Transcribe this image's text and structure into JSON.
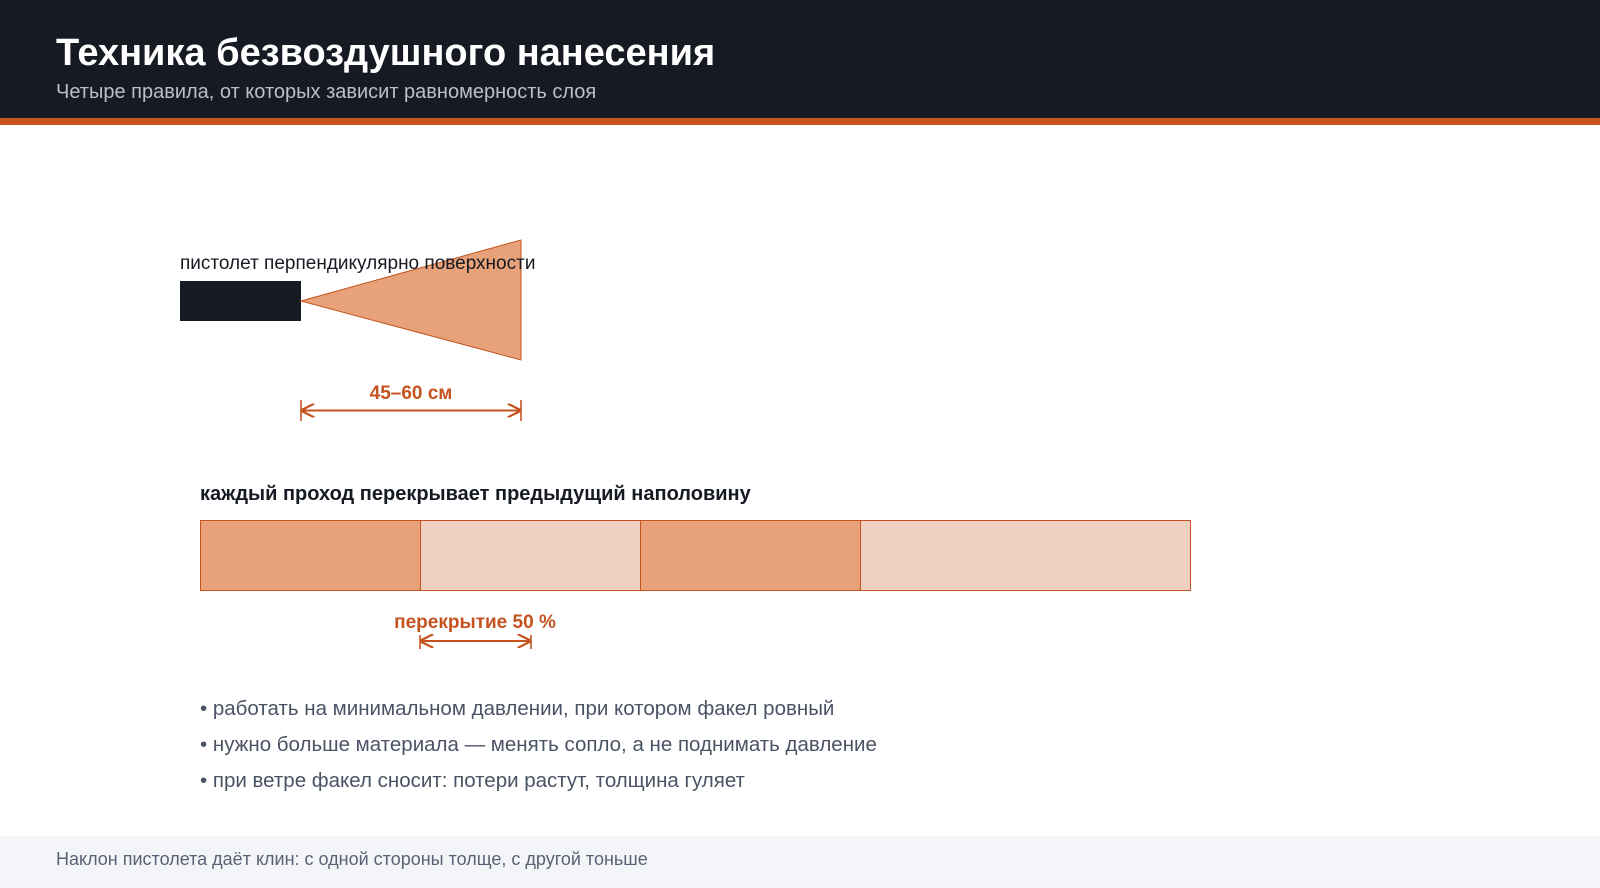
{
  "header": {
    "title": "Техника безвоздушного нанесения",
    "subtitle": "Четыре правила, от которых зависит равномерность слоя"
  },
  "gun_diagram": {
    "caption": "пистолет перпендикулярно поверхности",
    "distance_label": "45–60 см"
  },
  "overlap_diagram": {
    "caption": "каждый проход перекрывает предыдущий наполовину",
    "overlap_label": "перекрытие 50 %",
    "passes": 4
  },
  "bullets": [
    "• работать на минимальном давлении, при котором факел ровный",
    "• нужно больше материала — менять сопло, а не поднимать давление",
    "• при ветре факел сносит: потери растут, толщина гуляет"
  ],
  "footer": {
    "note": "Наклон пистолета даёт клин: с одной стороны толще, с другой тоньше"
  },
  "colors": {
    "header_bg": "#161a22",
    "accent": "#c4531f",
    "fan_fill": "#e8a27a",
    "light_fill": "#efd0c0",
    "gun_body": "#161a22",
    "footer_bg": "#f3f5f9"
  }
}
